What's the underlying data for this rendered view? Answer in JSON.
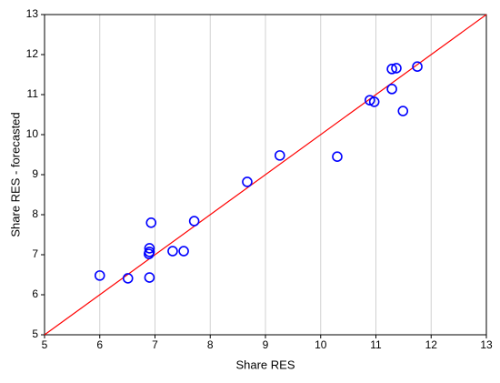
{
  "chart_data": {
    "type": "scatter",
    "xlabel": "Share RES",
    "ylabel": "Share RES - forecasted",
    "x": [
      6.0,
      6.51,
      6.9,
      6.93,
      6.9,
      6.9,
      6.89,
      7.32,
      7.52,
      7.71,
      8.67,
      9.26,
      10.3,
      10.89,
      10.97,
      11.29,
      11.37,
      11.29,
      11.49,
      11.75
    ],
    "series": [
      {
        "color": "#0000ff",
        "values": [
          6.48,
          6.41,
          6.43,
          7.8,
          7.16,
          7.07,
          7.02,
          7.09,
          7.09,
          7.84,
          8.82,
          9.48,
          9.45,
          10.86,
          10.82,
          11.64,
          11.66,
          11.14,
          10.59,
          11.7
        ]
      }
    ],
    "fit_line": {
      "x": [
        5,
        13
      ],
      "y": [
        5,
        13
      ],
      "color": "#ff0000"
    },
    "xlim": [
      5,
      13
    ],
    "ylim": [
      5,
      13
    ],
    "xticks": [
      5,
      6,
      7,
      8,
      9,
      10,
      11,
      12,
      13
    ],
    "yticks": [
      5,
      6,
      7,
      8,
      9,
      10,
      11,
      12,
      13
    ],
    "grid": "x"
  }
}
